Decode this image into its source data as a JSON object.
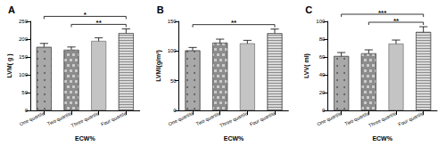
{
  "chart_data": [
    {
      "type": "bar",
      "title": "A",
      "x_label": "ECW%",
      "y_label": "LVM( g )",
      "categories": [
        "One quartile",
        "Two quartile",
        "Three quartile",
        "Four quartile"
      ],
      "values": [
        178,
        170,
        195,
        217
      ],
      "errors": [
        10,
        8,
        9,
        12
      ],
      "colors": [
        "#a9a9a9",
        "#8c8c8c",
        "#c4c4c4",
        "#d9d9d9"
      ],
      "ylim": [
        0,
        250
      ],
      "yticks": [
        0,
        50,
        100,
        150,
        200,
        250
      ],
      "grid": false,
      "annotations": [
        {
          "start": "Two quartile",
          "end": "Four quartile",
          "text": "**"
        },
        {
          "start": "One quartile",
          "end": "Four quartile",
          "text": "*"
        }
      ]
    },
    {
      "type": "bar",
      "title": "B",
      "x_label": "ECW%",
      "y_label": "LVMI(g/m²)",
      "categories": [
        "One quartile",
        "Two quartile",
        "Three quartile",
        "Four quartile"
      ],
      "values": [
        101,
        114,
        113,
        130
      ],
      "errors": [
        5,
        6,
        5,
        7
      ],
      "colors": [
        "#a9a9a9",
        "#8c8c8c",
        "#c4c4c4",
        "#d9d9d9"
      ],
      "ylim": [
        0,
        150
      ],
      "yticks": [
        0,
        50,
        100,
        150
      ],
      "grid": false,
      "annotations": [
        {
          "start": "One quartile",
          "end": "Four quartile",
          "text": "**"
        }
      ]
    },
    {
      "type": "bar",
      "title": "C",
      "x_label": "ECW%",
      "y_label": "LVV( ml)",
      "categories": [
        "One quartile",
        "Two quartile",
        "Three quartile",
        "Four quartile"
      ],
      "values": [
        61,
        64,
        75,
        88
      ],
      "errors": [
        4,
        4,
        4,
        6
      ],
      "colors": [
        "#a9a9a9",
        "#8c8c8c",
        "#c4c4c4",
        "#d9d9d9"
      ],
      "ylim": [
        0,
        100
      ],
      "yticks": [
        0,
        20,
        40,
        60,
        80,
        100
      ],
      "grid": false,
      "annotations": [
        {
          "start": "Two quartile",
          "end": "Four quartile",
          "text": "**"
        },
        {
          "start": "One quartile",
          "end": "Four quartile",
          "text": "***"
        }
      ]
    }
  ]
}
